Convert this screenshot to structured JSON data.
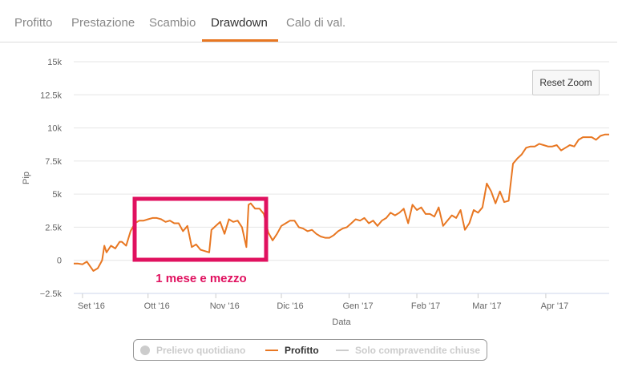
{
  "tabs": [
    {
      "label": "Profitto",
      "active": false
    },
    {
      "label": "Prestazione",
      "active": false
    },
    {
      "label": "Scambio",
      "active": false
    },
    {
      "label": "Drawdown",
      "active": true
    },
    {
      "label": "Calo di val.",
      "active": false
    }
  ],
  "reset_zoom_label": "Reset Zoom",
  "annotation_text": "1 mese e mezzo",
  "colors": {
    "accent": "#e87722",
    "annotation": "#e0115f",
    "grid": "#e6e6e6",
    "legend_hidden": "#cccccc"
  },
  "legend": {
    "items": [
      {
        "label": "Prelievo quotidiano",
        "symbol": "circle",
        "visible": false
      },
      {
        "label": "Profitto",
        "symbol": "line",
        "visible": true
      },
      {
        "label": "Solo compravendite chiuse",
        "symbol": "line",
        "visible": false
      }
    ]
  },
  "chart_data": {
    "type": "line",
    "title": "",
    "xlabel": "Data",
    "ylabel": "Pip",
    "ylim": [
      -2500,
      15000
    ],
    "y_ticks": [
      -2500,
      0,
      2500,
      5000,
      7500,
      10000,
      12500,
      15000
    ],
    "y_tick_labels": [
      "−2.5k",
      "0",
      "2.5k",
      "5k",
      "7.5k",
      "10k",
      "12.5k",
      "15k"
    ],
    "x_range": [
      "2016-08-28",
      "2017-04-30"
    ],
    "x_ticks": [
      "2016-09-01",
      "2016-10-01",
      "2016-11-01",
      "2016-12-01",
      "2017-01-01",
      "2017-02-01",
      "2017-03-01",
      "2017-04-01"
    ],
    "x_tick_labels": [
      "Set '16",
      "Ott '16",
      "Nov '16",
      "Dic '16",
      "Gen '17",
      "Feb '17",
      "Mar '17",
      "Apr '17"
    ],
    "grid": true,
    "series": [
      {
        "name": "Profitto",
        "x": [
          "2016-08-28",
          "2016-08-30",
          "2016-09-01",
          "2016-09-03",
          "2016-09-06",
          "2016-09-08",
          "2016-09-10",
          "2016-09-11",
          "2016-09-12",
          "2016-09-14",
          "2016-09-16",
          "2016-09-18",
          "2016-09-19",
          "2016-09-21",
          "2016-09-23",
          "2016-09-25",
          "2016-09-27",
          "2016-09-29",
          "2016-10-01",
          "2016-10-03",
          "2016-10-05",
          "2016-10-07",
          "2016-10-09",
          "2016-10-11",
          "2016-10-13",
          "2016-10-15",
          "2016-10-17",
          "2016-10-19",
          "2016-10-21",
          "2016-10-23",
          "2016-10-25",
          "2016-10-27",
          "2016-10-29",
          "2016-10-30",
          "2016-11-01",
          "2016-11-03",
          "2016-11-05",
          "2016-11-07",
          "2016-11-09",
          "2016-11-11",
          "2016-11-13",
          "2016-11-15",
          "2016-11-16",
          "2016-11-17",
          "2016-11-19",
          "2016-11-21",
          "2016-11-23",
          "2016-11-25",
          "2016-11-27",
          "2016-11-29",
          "2016-12-01",
          "2016-12-03",
          "2016-12-05",
          "2016-12-07",
          "2016-12-09",
          "2016-12-11",
          "2016-12-13",
          "2016-12-15",
          "2016-12-17",
          "2016-12-19",
          "2016-12-21",
          "2016-12-23",
          "2016-12-25",
          "2016-12-27",
          "2016-12-29",
          "2016-12-31",
          "2017-01-02",
          "2017-01-04",
          "2017-01-06",
          "2017-01-08",
          "2017-01-10",
          "2017-01-12",
          "2017-01-14",
          "2017-01-16",
          "2017-01-18",
          "2017-01-20",
          "2017-01-22",
          "2017-01-24",
          "2017-01-26",
          "2017-01-28",
          "2017-01-30",
          "2017-02-01",
          "2017-02-03",
          "2017-02-05",
          "2017-02-07",
          "2017-02-09",
          "2017-02-11",
          "2017-02-13",
          "2017-02-15",
          "2017-02-17",
          "2017-02-19",
          "2017-02-21",
          "2017-02-23",
          "2017-02-25",
          "2017-02-27",
          "2017-03-01",
          "2017-03-03",
          "2017-03-05",
          "2017-03-07",
          "2017-03-09",
          "2017-03-11",
          "2017-03-13",
          "2017-03-15",
          "2017-03-17",
          "2017-03-19",
          "2017-03-21",
          "2017-03-23",
          "2017-03-25",
          "2017-03-27",
          "2017-03-29",
          "2017-03-31",
          "2017-04-02",
          "2017-04-04",
          "2017-04-06",
          "2017-04-08",
          "2017-04-10",
          "2017-04-12",
          "2017-04-14",
          "2017-04-16",
          "2017-04-18",
          "2017-04-20",
          "2017-04-22",
          "2017-04-24",
          "2017-04-26",
          "2017-04-28",
          "2017-04-30"
        ],
        "y": [
          -250,
          -250,
          -300,
          -100,
          -800,
          -600,
          0,
          1100,
          600,
          1100,
          900,
          1400,
          1400,
          1100,
          2200,
          2800,
          3000,
          3000,
          3100,
          3200,
          3200,
          3100,
          2900,
          3000,
          2800,
          2800,
          2200,
          2600,
          1000,
          1200,
          800,
          700,
          600,
          2300,
          2600,
          2900,
          2000,
          3100,
          2900,
          3000,
          2500,
          1000,
          4200,
          4300,
          3900,
          3900,
          3500,
          2100,
          1500,
          2000,
          2600,
          2800,
          3000,
          3000,
          2500,
          2400,
          2200,
          2300,
          2000,
          1800,
          1700,
          1700,
          1900,
          2200,
          2400,
          2500,
          2800,
          3100,
          3000,
          3200,
          2800,
          3000,
          2600,
          3000,
          3200,
          3600,
          3400,
          3600,
          3900,
          2800,
          4200,
          3800,
          4000,
          3500,
          3500,
          3300,
          4000,
          2600,
          3000,
          3400,
          3200,
          3800,
          2300,
          2800,
          3800,
          3600,
          4000,
          5800,
          5200,
          4300,
          5200,
          4400,
          4500,
          7300,
          7700,
          8000,
          8500,
          8600,
          8600,
          8800,
          8700,
          8600,
          8600,
          8700,
          8300,
          8500,
          8700,
          8600,
          9100,
          9300,
          9300,
          9300,
          9100,
          9400,
          9500,
          9500
        ]
      },
      {
        "name": "Prelievo quotidiano",
        "x": [],
        "y": []
      },
      {
        "name": "Solo compravendite chiuse",
        "x": [],
        "y": []
      }
    ]
  }
}
